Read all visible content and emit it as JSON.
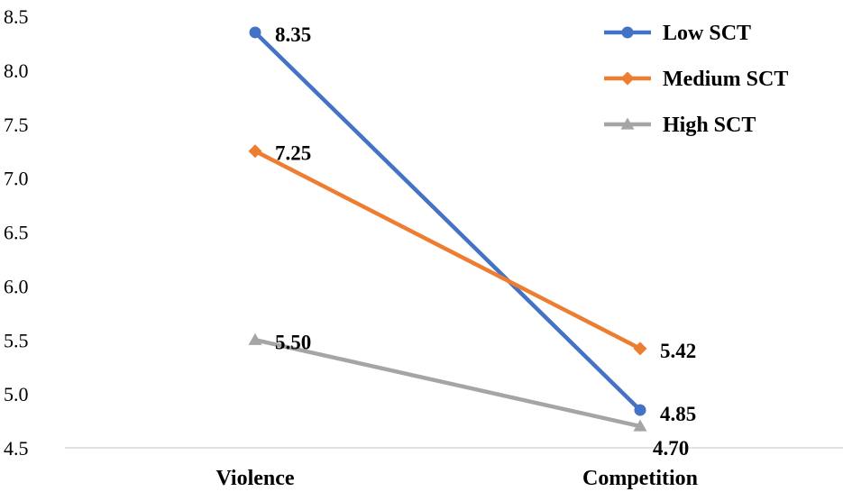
{
  "chart_data": {
    "type": "line",
    "categories": [
      "Violence",
      "Competition"
    ],
    "ylim": [
      4.5,
      8.5
    ],
    "yticks": [
      "4.5",
      "5.0",
      "5.5",
      "6.0",
      "6.5",
      "7.0",
      "7.5",
      "8.0",
      "8.5"
    ],
    "grid": false,
    "legend_position": "top-right",
    "series": [
      {
        "name": "Low SCT",
        "values": [
          8.35,
          4.85
        ],
        "labels": [
          "8.35",
          "4.85"
        ],
        "color": "#4472C4",
        "marker": "circle"
      },
      {
        "name": "Medium SCT",
        "values": [
          7.25,
          5.42
        ],
        "labels": [
          "7.25",
          "5.42"
        ],
        "color": "#ED7D31",
        "marker": "diamond"
      },
      {
        "name": "High SCT",
        "values": [
          5.5,
          4.7
        ],
        "labels": [
          "5.50",
          "4.70"
        ],
        "color": "#A5A5A5",
        "marker": "triangle"
      }
    ]
  }
}
